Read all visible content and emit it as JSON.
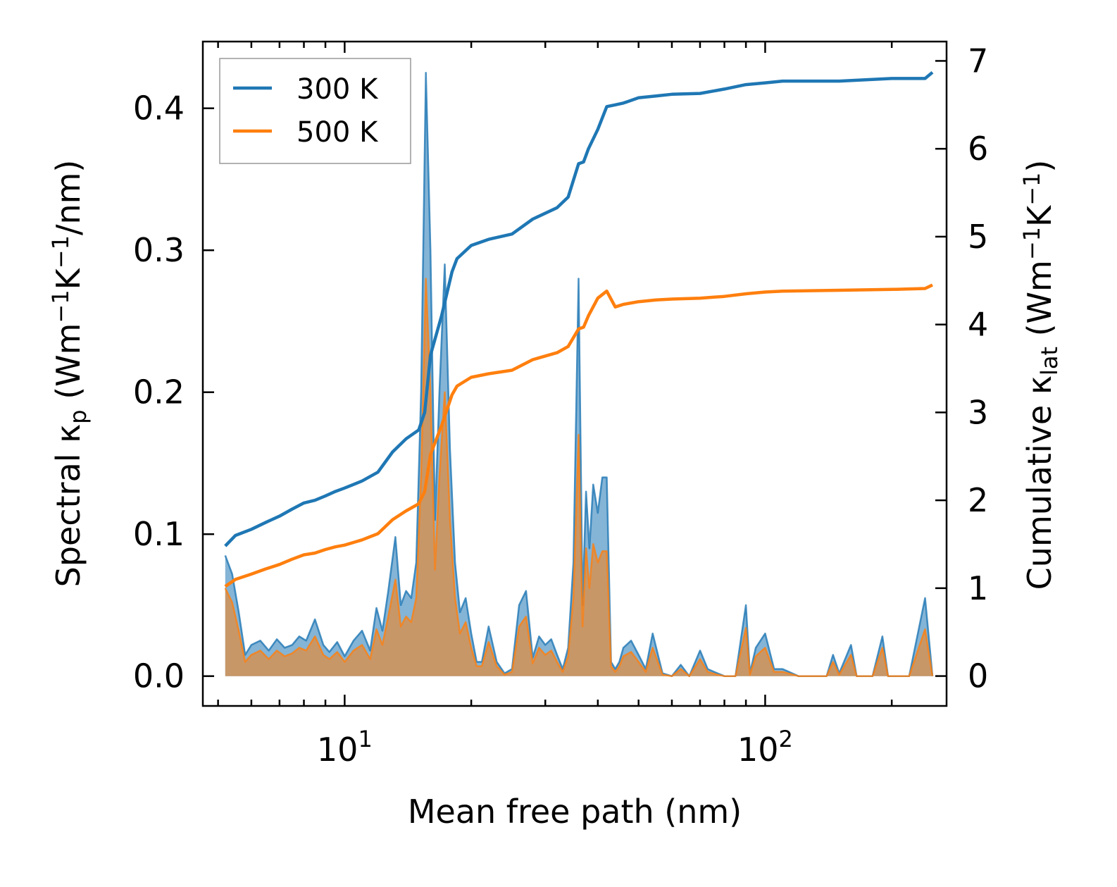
{
  "chart_data": {
    "type": "line",
    "x_scale": "log",
    "xlabel": "Mean free path (nm)",
    "ylabel_left": {
      "main": "Spectral κ",
      "sub": "p",
      "units": " (Wm",
      "sup1": "−1",
      "k": "K",
      "sup2": "−1",
      "tail": "/nm)"
    },
    "ylabel_right": {
      "main": "Cumulative κ",
      "sub": "lat",
      "units": " (Wm",
      "sup1": "−1",
      "k": "K",
      "sup2": "−1",
      "tail": ")"
    },
    "xlim": [
      4.6,
      270
    ],
    "ylim_left": [
      -0.021,
      0.447
    ],
    "ylim_right": [
      -0.34,
      7.22
    ],
    "x_ticks": [
      {
        "value": 10,
        "base": "10",
        "exp": "1"
      },
      {
        "value": 100,
        "base": "10",
        "exp": "2"
      }
    ],
    "y_ticks_left": [
      {
        "value": 0.0,
        "label": "0.0"
      },
      {
        "value": 0.1,
        "label": "0.1"
      },
      {
        "value": 0.2,
        "label": "0.2"
      },
      {
        "value": 0.3,
        "label": "0.3"
      },
      {
        "value": 0.4,
        "label": "0.4"
      }
    ],
    "y_ticks_right": [
      {
        "value": 0,
        "label": "0"
      },
      {
        "value": 1,
        "label": "1"
      },
      {
        "value": 2,
        "label": "2"
      },
      {
        "value": 3,
        "label": "3"
      },
      {
        "value": 4,
        "label": "4"
      },
      {
        "value": 5,
        "label": "5"
      },
      {
        "value": 6,
        "label": "6"
      },
      {
        "value": 7,
        "label": "7"
      }
    ],
    "legend": {
      "location": "top-left",
      "entries": [
        {
          "label": "300 K",
          "color": "#1f77b4"
        },
        {
          "label": "500 K",
          "color": "#ff7f0e"
        }
      ]
    },
    "spectral": [
      {
        "name": "300 K",
        "axis": "left",
        "color": "#1f77b4",
        "x": [
          5.2,
          5.4,
          5.6,
          5.8,
          6.0,
          6.3,
          6.6,
          6.9,
          7.2,
          7.5,
          7.8,
          8.1,
          8.5,
          8.9,
          9.2,
          9.6,
          10.0,
          10.5,
          11.0,
          11.5,
          11.9,
          12.3,
          12.7,
          13.2,
          13.6,
          14.0,
          14.4,
          14.8,
          15.2,
          15.6,
          16.0,
          16.4,
          16.8,
          17.3,
          17.8,
          18.3,
          18.8,
          19.4,
          20.0,
          20.6,
          21.2,
          22.0,
          23.0,
          24.0,
          25.0,
          26.0,
          27.0,
          28.0,
          29.0,
          30.0,
          31.0,
          32.0,
          33.0,
          34.0,
          35.0,
          36.0,
          36.8,
          37.5,
          38.2,
          39.0,
          40.0,
          41.0,
          42.0,
          43.0,
          44.0,
          45.0,
          46.0,
          48.0,
          50.0,
          52.0,
          54.0,
          57.0,
          60.0,
          63.0,
          66.0,
          70.0,
          73.0,
          77.0,
          80.0,
          85.0,
          90.0,
          92.0,
          95.0,
          100.0,
          105.0,
          110.0,
          120.0,
          140.0,
          145.0,
          150.0,
          160.0,
          165.0,
          170.0,
          180.0,
          190.0,
          196.0,
          200.0,
          210.0,
          220.0,
          240.0,
          250.0
        ],
        "values": [
          0.085,
          0.072,
          0.045,
          0.015,
          0.022,
          0.025,
          0.018,
          0.026,
          0.02,
          0.022,
          0.028,
          0.025,
          0.04,
          0.022,
          0.017,
          0.024,
          0.014,
          0.025,
          0.032,
          0.018,
          0.048,
          0.032,
          0.06,
          0.098,
          0.05,
          0.06,
          0.055,
          0.08,
          0.2,
          0.425,
          0.3,
          0.11,
          0.2,
          0.29,
          0.16,
          0.08,
          0.045,
          0.055,
          0.03,
          0.01,
          0.01,
          0.035,
          0.01,
          0.002,
          0.005,
          0.05,
          0.06,
          0.013,
          0.028,
          0.022,
          0.026,
          0.015,
          0.005,
          0.02,
          0.08,
          0.28,
          0.05,
          0.13,
          0.09,
          0.135,
          0.115,
          0.14,
          0.14,
          0.01,
          0.005,
          0.01,
          0.02,
          0.025,
          0.015,
          0.005,
          0.03,
          0.002,
          0.0,
          0.008,
          0.0,
          0.018,
          0.005,
          0.002,
          0.0,
          0.0,
          0.05,
          0.002,
          0.02,
          0.03,
          0.005,
          0.005,
          0.0,
          0.0,
          0.015,
          0.002,
          0.022,
          0.0,
          0.0,
          0.0,
          0.028,
          0.0,
          0.0,
          0.0,
          0.0,
          0.055,
          0.0
        ]
      },
      {
        "name": "500 K",
        "axis": "left",
        "color": "#ff7f0e",
        "x": [
          5.2,
          5.4,
          5.6,
          5.8,
          6.0,
          6.3,
          6.6,
          6.9,
          7.2,
          7.5,
          7.8,
          8.1,
          8.5,
          8.9,
          9.2,
          9.6,
          10.0,
          10.5,
          11.0,
          11.5,
          11.9,
          12.3,
          12.7,
          13.2,
          13.6,
          14.0,
          14.4,
          14.8,
          15.2,
          15.6,
          16.0,
          16.4,
          16.8,
          17.3,
          17.8,
          18.3,
          18.8,
          19.4,
          20.0,
          20.6,
          21.2,
          22.0,
          23.0,
          24.0,
          25.0,
          26.0,
          27.0,
          28.0,
          29.0,
          30.0,
          31.0,
          32.0,
          33.0,
          34.0,
          35.0,
          36.0,
          36.8,
          37.5,
          38.2,
          39.0,
          40.0,
          41.0,
          42.0,
          43.0,
          44.0,
          45.0,
          46.0,
          48.0,
          50.0,
          52.0,
          54.0,
          57.0,
          60.0,
          63.0,
          66.0,
          70.0,
          73.0,
          77.0,
          80.0,
          85.0,
          90.0,
          92.0,
          95.0,
          100.0,
          105.0,
          110.0,
          120.0,
          140.0,
          145.0,
          150.0,
          160.0,
          165.0,
          170.0,
          180.0,
          190.0,
          196.0,
          200.0,
          210.0,
          220.0,
          240.0,
          250.0
        ],
        "values": [
          0.062,
          0.052,
          0.032,
          0.01,
          0.015,
          0.018,
          0.012,
          0.018,
          0.014,
          0.016,
          0.02,
          0.018,
          0.028,
          0.015,
          0.012,
          0.017,
          0.01,
          0.018,
          0.022,
          0.012,
          0.033,
          0.022,
          0.042,
          0.068,
          0.035,
          0.042,
          0.038,
          0.055,
          0.14,
          0.28,
          0.2,
          0.075,
          0.14,
          0.2,
          0.11,
          0.055,
          0.03,
          0.038,
          0.02,
          0.007,
          0.007,
          0.024,
          0.007,
          0.001,
          0.003,
          0.035,
          0.042,
          0.009,
          0.02,
          0.015,
          0.018,
          0.01,
          0.003,
          0.014,
          0.055,
          0.17,
          0.035,
          0.09,
          0.062,
          0.093,
          0.08,
          0.088,
          0.088,
          0.007,
          0.003,
          0.007,
          0.014,
          0.017,
          0.01,
          0.003,
          0.02,
          0.001,
          0.0,
          0.005,
          0.0,
          0.012,
          0.003,
          0.001,
          0.0,
          0.0,
          0.034,
          0.001,
          0.014,
          0.02,
          0.003,
          0.003,
          0.0,
          0.0,
          0.01,
          0.001,
          0.015,
          0.0,
          0.0,
          0.0,
          0.02,
          0.0,
          0.0,
          0.0,
          0.0,
          0.033,
          0.0
        ]
      }
    ],
    "cumulative": [
      {
        "name": "300 K",
        "axis": "right",
        "color": "#1f77b4",
        "x": [
          5.2,
          5.5,
          6.0,
          6.5,
          7.0,
          7.5,
          8.0,
          8.5,
          9.0,
          9.5,
          10.0,
          11.0,
          12.0,
          13.0,
          14.0,
          15.0,
          15.5,
          16.0,
          17.0,
          18.0,
          18.5,
          20.0,
          22.0,
          25.0,
          28.0,
          32.0,
          34.0,
          36.0,
          37.0,
          38.0,
          40.0,
          42.0,
          44.0,
          46.0,
          50.0,
          55.0,
          60.0,
          70.0,
          80.0,
          90.0,
          100.0,
          110.0,
          150.0,
          200.0,
          240.0,
          250.0
        ],
        "values": [
          1.48,
          1.6,
          1.67,
          1.75,
          1.82,
          1.9,
          1.97,
          2.0,
          2.05,
          2.1,
          2.14,
          2.22,
          2.32,
          2.55,
          2.7,
          2.8,
          3.0,
          3.65,
          4.1,
          4.6,
          4.75,
          4.9,
          4.97,
          5.03,
          5.2,
          5.33,
          5.45,
          5.83,
          5.85,
          6.0,
          6.22,
          6.48,
          6.5,
          6.52,
          6.58,
          6.6,
          6.62,
          6.63,
          6.68,
          6.73,
          6.75,
          6.77,
          6.77,
          6.8,
          6.8,
          6.87
        ]
      },
      {
        "name": "500 K",
        "axis": "right",
        "color": "#ff7f0e",
        "x": [
          5.2,
          5.5,
          6.0,
          6.5,
          7.0,
          7.5,
          8.0,
          8.5,
          9.0,
          9.5,
          10.0,
          11.0,
          12.0,
          13.0,
          14.0,
          15.0,
          15.5,
          16.0,
          17.0,
          18.0,
          18.5,
          20.0,
          22.0,
          25.0,
          28.0,
          32.0,
          34.0,
          36.0,
          37.0,
          38.0,
          40.0,
          42.0,
          44.0,
          46.0,
          50.0,
          55.0,
          60.0,
          70.0,
          80.0,
          90.0,
          100.0,
          110.0,
          150.0,
          200.0,
          240.0,
          250.0
        ],
        "values": [
          1.02,
          1.1,
          1.16,
          1.22,
          1.27,
          1.33,
          1.38,
          1.4,
          1.44,
          1.47,
          1.49,
          1.55,
          1.62,
          1.78,
          1.88,
          1.96,
          2.1,
          2.52,
          2.85,
          3.2,
          3.3,
          3.4,
          3.44,
          3.48,
          3.6,
          3.68,
          3.75,
          3.95,
          3.97,
          4.1,
          4.3,
          4.38,
          4.2,
          4.23,
          4.26,
          4.28,
          4.29,
          4.3,
          4.32,
          4.35,
          4.37,
          4.38,
          4.39,
          4.4,
          4.41,
          4.45
        ]
      }
    ]
  }
}
